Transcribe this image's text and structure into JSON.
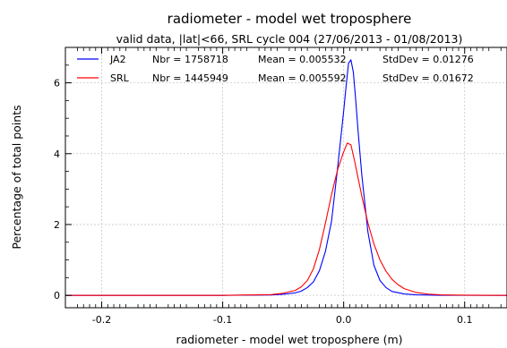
{
  "chart_data": {
    "type": "line",
    "title": "radiometer - model wet troposphere",
    "subtitle": "valid data, |lat|<66, SRL cycle 004 (27/06/2013 - 01/08/2013)",
    "xlabel": "radiometer - model wet troposphere (m)",
    "ylabel": "Percentage of total points",
    "xlim": [
      -0.23,
      0.135
    ],
    "ylim": [
      -0.35,
      7.0
    ],
    "xticks": [
      -0.2,
      -0.1,
      0.0,
      0.1
    ],
    "xtick_labels": [
      "-0.2",
      "-0.1",
      "0.0",
      "0.1"
    ],
    "yticks": [
      0,
      2,
      4,
      6
    ],
    "ytick_labels": [
      "0",
      "2",
      "4",
      "6"
    ],
    "grid": true,
    "legend_position": "top",
    "series": [
      {
        "name": "JA2",
        "color": "#0000ff",
        "nbr_text": "Nbr = 1758718",
        "mean_text": "Mean = 0.005532",
        "std_text": "StdDev = 0.01276",
        "x": [
          -0.23,
          -0.1,
          -0.06,
          -0.05,
          -0.04,
          -0.035,
          -0.03,
          -0.025,
          -0.02,
          -0.015,
          -0.01,
          -0.005,
          0.0,
          0.002,
          0.004,
          0.006,
          0.008,
          0.01,
          0.012,
          0.015,
          0.02,
          0.025,
          0.03,
          0.035,
          0.04,
          0.05,
          0.06,
          0.08,
          0.135
        ],
        "y": [
          0,
          0,
          0.01,
          0.03,
          0.07,
          0.12,
          0.22,
          0.38,
          0.7,
          1.25,
          2.1,
          3.6,
          5.2,
          5.9,
          6.55,
          6.65,
          6.3,
          5.5,
          4.6,
          3.4,
          1.8,
          0.85,
          0.42,
          0.22,
          0.11,
          0.04,
          0.015,
          0.003,
          0
        ]
      },
      {
        "name": "SRL",
        "color": "#ff0000",
        "nbr_text": "Nbr = 1445949",
        "mean_text": "Mean = 0.005592",
        "std_text": "StdDev = 0.01672",
        "x": [
          -0.23,
          -0.1,
          -0.06,
          -0.05,
          -0.04,
          -0.035,
          -0.03,
          -0.025,
          -0.02,
          -0.015,
          -0.01,
          -0.005,
          0.0,
          0.003,
          0.006,
          0.009,
          0.012,
          0.015,
          0.02,
          0.025,
          0.03,
          0.035,
          0.04,
          0.045,
          0.05,
          0.06,
          0.07,
          0.08,
          0.1,
          0.135
        ],
        "y": [
          0,
          0,
          0.02,
          0.06,
          0.14,
          0.24,
          0.42,
          0.75,
          1.3,
          2.05,
          2.85,
          3.55,
          4.05,
          4.3,
          4.25,
          3.8,
          3.3,
          2.8,
          2.05,
          1.45,
          1.0,
          0.68,
          0.45,
          0.3,
          0.19,
          0.08,
          0.035,
          0.015,
          0.004,
          0
        ]
      }
    ]
  }
}
